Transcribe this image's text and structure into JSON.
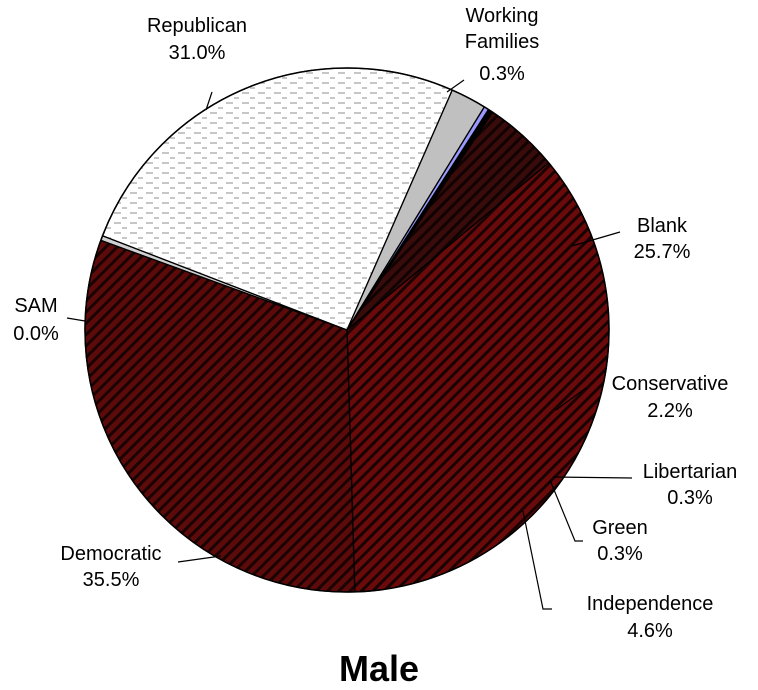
{
  "chart_data": {
    "type": "pie",
    "title": "Male",
    "slices": [
      {
        "label": "Working Families",
        "value": 0.3,
        "value_label": "0.3%",
        "color": "#d0d0d0",
        "pattern": "solid"
      },
      {
        "label": "Blank",
        "value": 25.7,
        "value_label": "25.7%",
        "color": "#ffffff",
        "pattern": "dashes"
      },
      {
        "label": "Conservative",
        "value": 2.2,
        "value_label": "2.2%",
        "color": "#c0c0c0",
        "pattern": "solid"
      },
      {
        "label": "Libertarian",
        "value": 0.3,
        "value_label": "0.3%",
        "color": "#9999ff",
        "pattern": "solid"
      },
      {
        "label": "Green",
        "value": 0.3,
        "value_label": "0.3%",
        "color": "#000000",
        "pattern": "solid"
      },
      {
        "label": "Independence",
        "value": 4.6,
        "value_label": "4.6%",
        "color": "#3a0b0b",
        "pattern": "stripes"
      },
      {
        "label": "Democratic",
        "value": 35.5,
        "value_label": "35.5%",
        "color": "#6b0a0a",
        "pattern": "stripes"
      },
      {
        "label": "SAM",
        "value": 0.0,
        "value_label": "0.0%",
        "color": "#000000",
        "pattern": "solid"
      },
      {
        "label": "Republican",
        "value": 31.0,
        "value_label": "31.0%",
        "color": "#5c0a0a",
        "pattern": "stripes"
      }
    ],
    "legend": "none",
    "label_placement": "outside with leader lines"
  }
}
